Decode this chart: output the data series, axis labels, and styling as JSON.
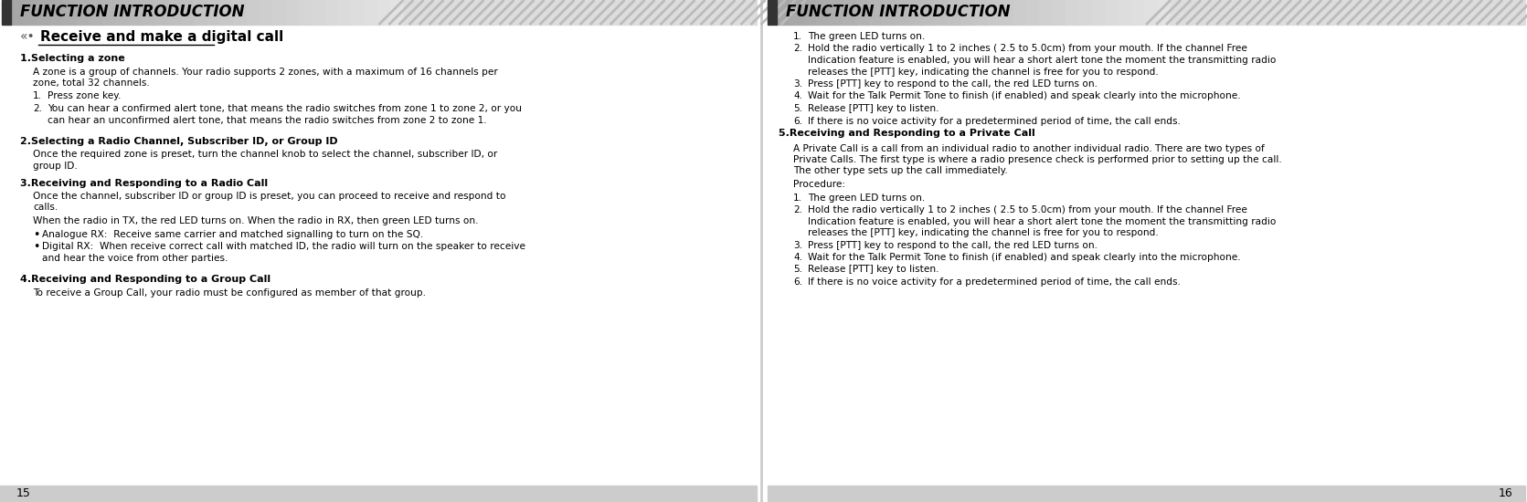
{
  "bg_color": "#ffffff",
  "header_title": "FUNCTION INTRODUCTION",
  "page_left": "15",
  "page_right": "16",
  "left_col": {
    "section_title": "Receive and make a digital call",
    "items": [
      {
        "type": "bold_heading",
        "text": "1.Selecting a zone"
      },
      {
        "type": "body",
        "text": "A zone is a group of channels. Your radio supports 2 zones, with a maximum of 16 channels per\nzone, total 32 channels."
      },
      {
        "type": "numbered",
        "num": "1.",
        "text": "Press zone key."
      },
      {
        "type": "numbered",
        "num": "2.",
        "text": "You can hear a confirmed alert tone, that means the radio switches from zone 1 to zone 2, or you\ncan hear an unconfirmed alert tone, that means the radio switches from zone 2 to zone 1."
      },
      {
        "type": "spacer"
      },
      {
        "type": "bold_heading",
        "text": "2.Selecting a Radio Channel, Subscriber ID, or Group ID"
      },
      {
        "type": "body",
        "text": "Once the required zone is preset, turn the channel knob to select the channel, subscriber ID, or\ngroup ID."
      },
      {
        "type": "spacer_small"
      },
      {
        "type": "bold_heading",
        "text": "3.Receiving and Responding to a Radio Call"
      },
      {
        "type": "body",
        "text": "Once the channel, subscriber ID or group ID is preset, you can proceed to receive and respond to\ncalls."
      },
      {
        "type": "body",
        "text": "When the radio in TX, the red LED turns on. When the radio in RX, then green LED turns on."
      },
      {
        "type": "bullet",
        "text": "Analogue RX:  Receive same carrier and matched signalling to turn on the SQ."
      },
      {
        "type": "bullet",
        "text": "Digital RX:  When receive correct call with matched ID, the radio will turn on the speaker to receive\nand hear the voice from other parties."
      },
      {
        "type": "spacer"
      },
      {
        "type": "bold_heading",
        "text": "4.Receiving and Responding to a Group Call"
      },
      {
        "type": "body",
        "text": "To receive a Group Call, your radio must be configured as member of that group."
      }
    ]
  },
  "right_col": {
    "items": [
      {
        "type": "numbered",
        "num": "1.",
        "text": "The green LED turns on."
      },
      {
        "type": "numbered",
        "num": "2.",
        "text": "Hold the radio vertically 1 to 2 inches ( 2.5 to 5.0cm) from your mouth. If the channel Free\nIndication feature is enabled, you will hear a short alert tone the moment the transmitting radio\nreleases the [PTT] key, indicating the channel is free for you to respond."
      },
      {
        "type": "numbered",
        "num": "3.",
        "text": "Press [PTT] key to respond to the call, the red LED turns on."
      },
      {
        "type": "numbered",
        "num": "4.",
        "text": "Wait for the Talk Permit Tone to finish (if enabled) and speak clearly into the microphone."
      },
      {
        "type": "numbered",
        "num": "5.",
        "text": "Release [PTT] key to listen."
      },
      {
        "type": "numbered",
        "num": "6.",
        "text": "If there is no voice activity for a predetermined period of time, the call ends."
      },
      {
        "type": "bold_heading",
        "text": "5.Receiving and Responding to a Private Call"
      },
      {
        "type": "body",
        "text": "A Private Call is a call from an individual radio to another individual radio. There are two types of\nPrivate Calls. The first type is where a radio presence check is performed prior to setting up the call.\nThe other type sets up the call immediately."
      },
      {
        "type": "body",
        "text": "Procedure:"
      },
      {
        "type": "numbered",
        "num": "1.",
        "text": "The green LED turns on."
      },
      {
        "type": "numbered",
        "num": "2.",
        "text": "Hold the radio vertically 1 to 2 inches ( 2.5 to 5.0cm) from your mouth. If the channel Free\nIndication feature is enabled, you will hear a short alert tone the moment the transmitting radio\nreleases the [PTT] key, indicating the channel is free for you to respond."
      },
      {
        "type": "numbered",
        "num": "3.",
        "text": "Press [PTT] key to respond to the call, the red LED turns on."
      },
      {
        "type": "numbered",
        "num": "4.",
        "text": "Wait for the Talk Permit Tone to finish (if enabled) and speak clearly into the microphone."
      },
      {
        "type": "numbered",
        "num": "5.",
        "text": "Release [PTT] key to listen."
      },
      {
        "type": "numbered",
        "num": "6.",
        "text": "If there is no voice activity for a predetermined period of time, the call ends."
      }
    ]
  }
}
